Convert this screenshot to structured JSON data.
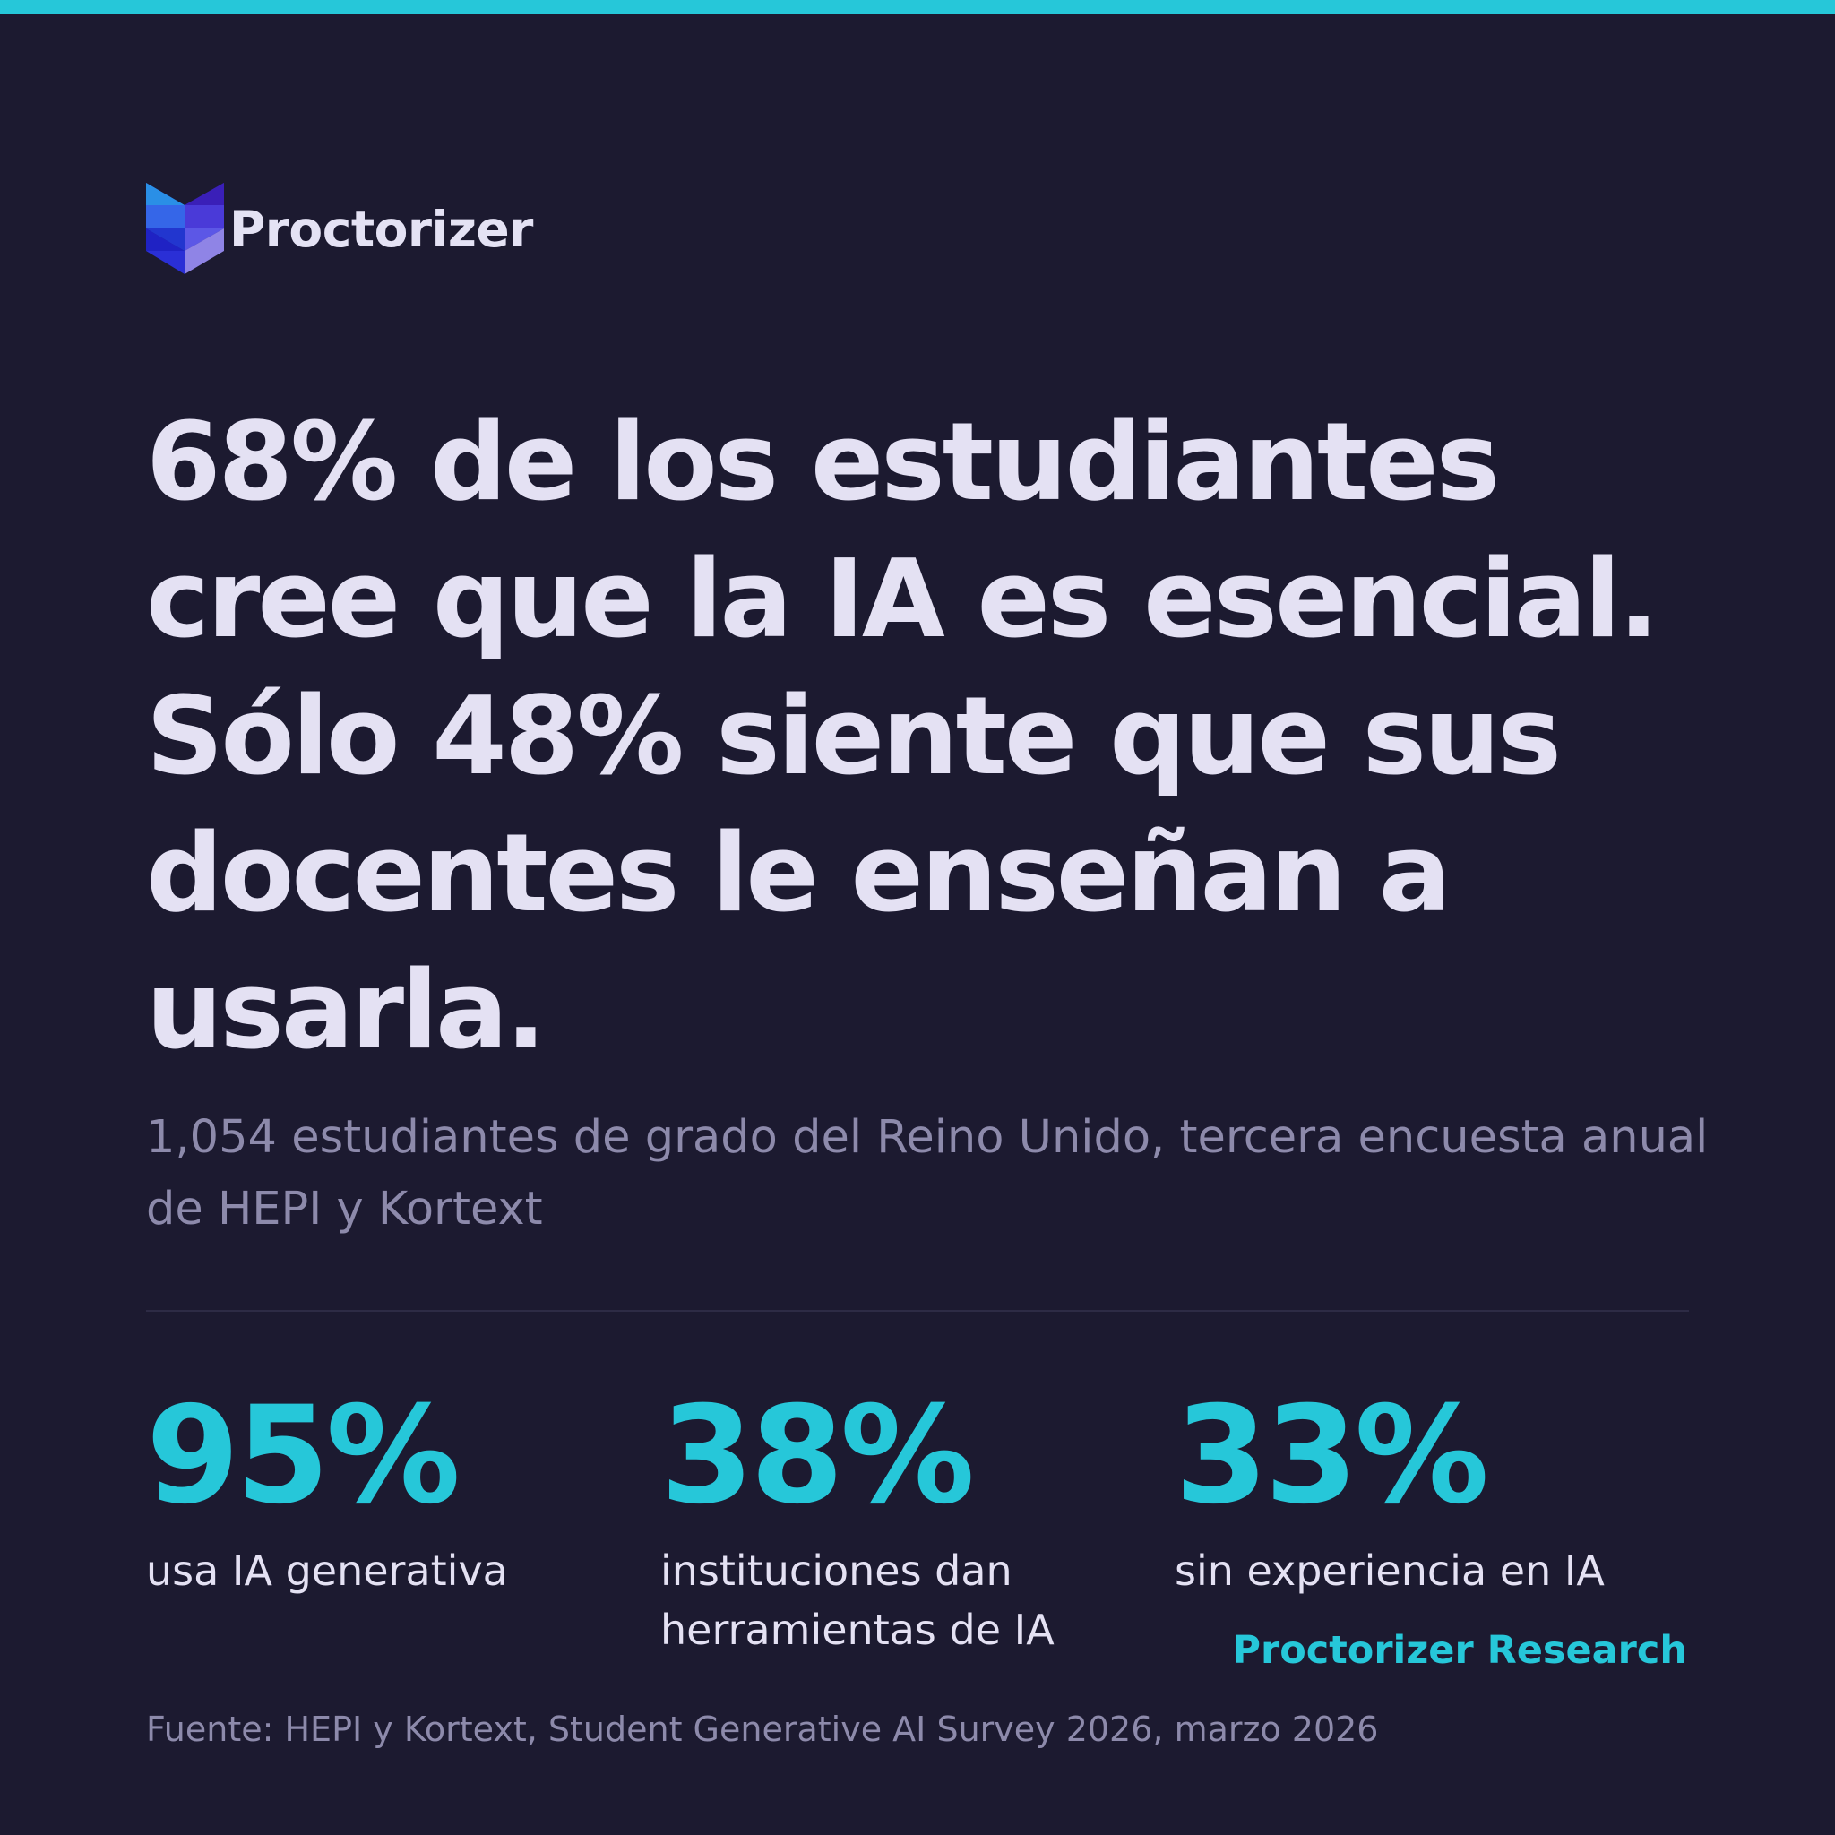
{
  "brand": {
    "name": "Proctorizer",
    "colors": {
      "background": "#1c1a30",
      "accent": "#26c7d9",
      "headline_text": "#e4e1f3",
      "muted_text": "#8d8aab"
    },
    "logo_icon": "cube-logo-icon"
  },
  "headline": {
    "text": "68% de los estudiantes cree que la IA es esencial. Sólo 48% siente que sus docentes le enseñan a usarla."
  },
  "subtitle": {
    "text": "1,054 estudiantes de grado del Reino Unido, tercera encuesta anual de HEPI y Kortext"
  },
  "stats": [
    {
      "value": "95%",
      "label": "usa IA generativa"
    },
    {
      "value": "38%",
      "label": "instituciones dan herramientas de IA"
    },
    {
      "value": "33%",
      "label": "sin experiencia en IA"
    }
  ],
  "credit": {
    "text": "Proctorizer Research"
  },
  "source": {
    "text": "Fuente: HEPI y Kortext, Student Generative AI Survey 2026, marzo 2026"
  }
}
